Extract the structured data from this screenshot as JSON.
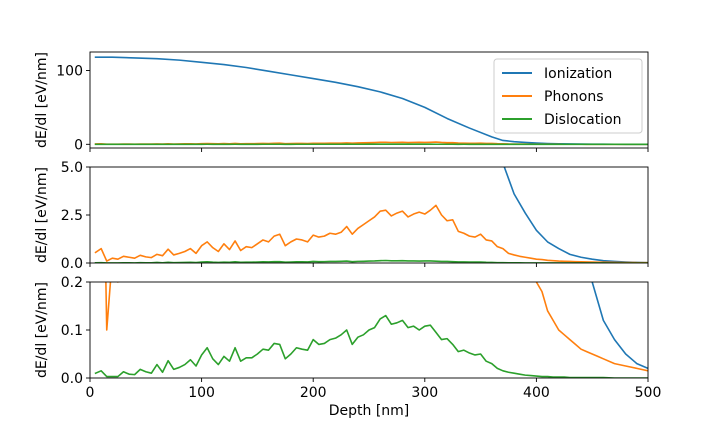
{
  "chart_data": {
    "type": "line",
    "shared_x": {
      "label": "Depth [nm]",
      "range": [
        0,
        500
      ],
      "ticks": [
        0,
        100,
        200,
        300,
        400,
        500
      ],
      "tick_labels": [
        "0",
        "100",
        "200",
        "300",
        "400",
        "500"
      ]
    },
    "colors": {
      "Ionization": "#1f77b4",
      "Phonons": "#ff7f0e",
      "Dislocation": "#2ca02c"
    },
    "legend": {
      "location": "upper-right",
      "entries": [
        "Ionization",
        "Phonons",
        "Dislocation"
      ]
    },
    "series": [
      {
        "name": "Ionization",
        "x": [
          5,
          20,
          40,
          60,
          80,
          100,
          120,
          140,
          160,
          180,
          200,
          220,
          240,
          260,
          280,
          300,
          320,
          340,
          360,
          370,
          380,
          390,
          400,
          410,
          420,
          430,
          440,
          450,
          460,
          470,
          480,
          490,
          500
        ],
        "values": [
          118,
          118,
          117,
          116,
          114,
          111,
          108,
          104,
          99,
          94,
          89,
          84,
          78,
          71,
          62,
          50,
          35,
          22,
          10,
          5.2,
          3.6,
          2.6,
          1.7,
          1.1,
          0.75,
          0.45,
          0.3,
          0.2,
          0.12,
          0.08,
          0.05,
          0.03,
          0.02
        ]
      },
      {
        "name": "Phonons",
        "x": [
          5,
          10,
          15,
          20,
          25,
          30,
          35,
          40,
          45,
          50,
          55,
          60,
          65,
          70,
          75,
          80,
          85,
          90,
          95,
          100,
          105,
          110,
          115,
          120,
          125,
          130,
          135,
          140,
          145,
          150,
          155,
          160,
          165,
          170,
          175,
          180,
          185,
          190,
          195,
          200,
          205,
          210,
          215,
          220,
          225,
          230,
          235,
          240,
          245,
          250,
          255,
          260,
          265,
          270,
          275,
          280,
          285,
          290,
          295,
          300,
          305,
          310,
          315,
          320,
          325,
          330,
          335,
          340,
          345,
          350,
          355,
          360,
          365,
          370,
          375,
          380,
          385,
          390,
          395,
          400,
          405,
          410,
          415,
          420,
          425,
          430,
          435,
          440,
          445,
          450,
          455,
          460,
          470,
          480,
          490,
          500
        ],
        "values": [
          0.55,
          0.75,
          0.1,
          0.25,
          0.2,
          0.35,
          0.3,
          0.25,
          0.4,
          0.32,
          0.28,
          0.45,
          0.38,
          0.72,
          0.42,
          0.5,
          0.6,
          0.75,
          0.5,
          0.9,
          1.1,
          0.8,
          0.6,
          1.0,
          0.7,
          1.15,
          0.65,
          0.85,
          0.8,
          1.0,
          1.2,
          1.1,
          1.4,
          1.5,
          0.9,
          1.1,
          1.25,
          1.2,
          1.1,
          1.45,
          1.35,
          1.4,
          1.55,
          1.5,
          1.6,
          1.9,
          1.5,
          1.8,
          2.0,
          2.2,
          2.4,
          2.7,
          2.75,
          2.45,
          2.6,
          2.7,
          2.4,
          2.55,
          2.65,
          2.55,
          2.75,
          3.0,
          2.5,
          2.2,
          2.25,
          1.65,
          1.55,
          1.4,
          1.35,
          1.5,
          1.2,
          1.15,
          0.85,
          0.75,
          0.5,
          0.42,
          0.35,
          0.3,
          0.25,
          0.2,
          0.18,
          0.14,
          0.12,
          0.1,
          0.09,
          0.08,
          0.07,
          0.06,
          0.055,
          0.05,
          0.045,
          0.04,
          0.03,
          0.025,
          0.02,
          0.015
        ]
      },
      {
        "name": "Dislocation",
        "x": [
          5,
          10,
          15,
          20,
          25,
          30,
          35,
          40,
          45,
          50,
          55,
          60,
          65,
          70,
          75,
          80,
          85,
          90,
          95,
          100,
          105,
          110,
          115,
          120,
          125,
          130,
          135,
          140,
          145,
          150,
          155,
          160,
          165,
          170,
          175,
          180,
          185,
          190,
          195,
          200,
          205,
          210,
          215,
          220,
          225,
          230,
          235,
          240,
          245,
          250,
          255,
          260,
          265,
          270,
          275,
          280,
          285,
          290,
          295,
          300,
          305,
          310,
          315,
          320,
          325,
          330,
          335,
          340,
          345,
          350,
          355,
          360,
          365,
          370,
          375,
          380,
          385,
          390,
          395,
          400,
          405,
          410,
          415,
          420,
          425,
          430,
          435,
          440,
          445,
          450,
          455,
          460,
          470,
          480,
          490,
          500
        ],
        "values": [
          0.01,
          0.015,
          0.003,
          0.003,
          0.003,
          0.013,
          0.008,
          0.007,
          0.018,
          0.013,
          0.01,
          0.028,
          0.012,
          0.036,
          0.018,
          0.022,
          0.028,
          0.038,
          0.025,
          0.048,
          0.063,
          0.04,
          0.028,
          0.045,
          0.035,
          0.063,
          0.035,
          0.042,
          0.042,
          0.05,
          0.06,
          0.058,
          0.072,
          0.07,
          0.04,
          0.05,
          0.063,
          0.06,
          0.058,
          0.08,
          0.07,
          0.072,
          0.08,
          0.083,
          0.09,
          0.1,
          0.07,
          0.085,
          0.09,
          0.1,
          0.105,
          0.123,
          0.13,
          0.112,
          0.115,
          0.12,
          0.105,
          0.108,
          0.1,
          0.108,
          0.11,
          0.095,
          0.08,
          0.082,
          0.07,
          0.055,
          0.058,
          0.052,
          0.048,
          0.05,
          0.035,
          0.03,
          0.02,
          0.015,
          0.012,
          0.01,
          0.008,
          0.006,
          0.005,
          0.004,
          0.003,
          0.003,
          0.002,
          0.002,
          0.002,
          0.001,
          0.001,
          0.001,
          0.001,
          0.001,
          0.001,
          0.001,
          0.0,
          0.0,
          0.0,
          0.0
        ]
      }
    ],
    "panels": [
      {
        "name": "top",
        "ylabel": "dE/dl [eV/nm]",
        "ylim": [
          -5,
          125
        ],
        "yticks": [
          0,
          100
        ],
        "ytick_labels": [
          "0",
          "100"
        ],
        "legend": true
      },
      {
        "name": "middle",
        "ylabel": "dE/dl [eV/nm]",
        "ylim": [
          0,
          5
        ],
        "yticks": [
          0,
          2.5,
          5
        ],
        "ytick_labels": [
          "0.0",
          "2.5",
          "5.0"
        ],
        "legend": false
      },
      {
        "name": "bottom",
        "ylabel": "dE/dl [eV/nm]",
        "ylim": [
          0,
          0.2
        ],
        "yticks": [
          0,
          0.1,
          0.2
        ],
        "ytick_labels": [
          "0.0",
          "0.1",
          "0.2"
        ],
        "legend": false,
        "show_xticklabels": true
      }
    ]
  }
}
